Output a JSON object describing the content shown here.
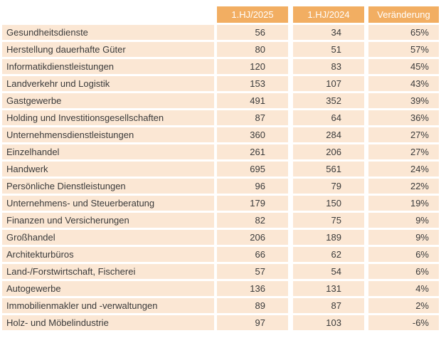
{
  "columns": [
    "1.HJ/2025",
    "1.HJ/2024",
    "Veränderung"
  ],
  "rows": [
    {
      "label": "Gesundheitsdienste",
      "a": "56",
      "b": "34",
      "c": "65%"
    },
    {
      "label": "Herstellung dauerhafte Güter",
      "a": "80",
      "b": "51",
      "c": "57%"
    },
    {
      "label": "Informatikdienstleistungen",
      "a": "120",
      "b": "83",
      "c": "45%"
    },
    {
      "label": "Landverkehr und Logistik",
      "a": "153",
      "b": "107",
      "c": "43%"
    },
    {
      "label": "Gastgewerbe",
      "a": "491",
      "b": "352",
      "c": "39%"
    },
    {
      "label": "Holding und Investitionsgesellschaften",
      "a": "87",
      "b": "64",
      "c": "36%"
    },
    {
      "label": "Unternehmensdienstleistungen",
      "a": "360",
      "b": "284",
      "c": "27%"
    },
    {
      "label": "Einzelhandel",
      "a": "261",
      "b": "206",
      "c": "27%"
    },
    {
      "label": "Handwerk",
      "a": "695",
      "b": "561",
      "c": "24%"
    },
    {
      "label": "Persönliche Dienstleistungen",
      "a": "96",
      "b": "79",
      "c": "22%"
    },
    {
      "label": "Unternehmens- und Steuerberatung",
      "a": "179",
      "b": "150",
      "c": "19%"
    },
    {
      "label": "Finanzen und Versicherungen",
      "a": "82",
      "b": "75",
      "c": "9%"
    },
    {
      "label": "Großhandel",
      "a": "206",
      "b": "189",
      "c": "9%"
    },
    {
      "label": "Architekturbüros",
      "a": "66",
      "b": "62",
      "c": "6%"
    },
    {
      "label": "Land-/Forstwirtschaft, Fischerei",
      "a": "57",
      "b": "54",
      "c": "6%"
    },
    {
      "label": "Autogewerbe",
      "a": "136",
      "b": "131",
      "c": "4%"
    },
    {
      "label": "Immobilienmakler und -verwaltungen",
      "a": "89",
      "b": "87",
      "c": "2%"
    },
    {
      "label": "Holz- und Möbelindustrie",
      "a": "97",
      "b": "103",
      "c": "-6%"
    }
  ]
}
